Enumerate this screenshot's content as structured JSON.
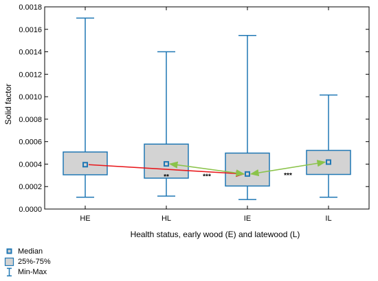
{
  "chart_data": {
    "type": "box",
    "categories": [
      "HE",
      "HL",
      "IE",
      "IL"
    ],
    "boxes": [
      {
        "category": "HE",
        "min": 0.000105,
        "q1": 0.000305,
        "median": 0.000395,
        "q3": 0.000508,
        "max": 0.0017
      },
      {
        "category": "HL",
        "min": 0.000115,
        "q1": 0.000275,
        "median": 0.000402,
        "q3": 0.000578,
        "max": 0.0014
      },
      {
        "category": "IE",
        "min": 8.5e-05,
        "q1": 0.000205,
        "median": 0.000312,
        "q3": 0.000498,
        "max": 0.001545
      },
      {
        "category": "IL",
        "min": 0.000105,
        "q1": 0.000308,
        "median": 0.000418,
        "q3": 0.000522,
        "max": 0.001015
      }
    ],
    "ylabel": "Solid factor",
    "xlabel": "Health status, early wood (E) and latewood (L)",
    "ylim": [
      0,
      0.0018
    ],
    "yticks": [
      "0.0000",
      "0.0002",
      "0.0004",
      "0.0006",
      "0.0008",
      "0.0010",
      "0.0012",
      "0.0014",
      "0.0016",
      "0.0018"
    ],
    "grid": false,
    "legend": {
      "placement": "bottom-left",
      "entries": [
        {
          "symbol": "median-square",
          "label": "Median"
        },
        {
          "symbol": "box",
          "label": "25%-75%"
        },
        {
          "symbol": "whisker",
          "label": "Min-Max"
        }
      ]
    },
    "annotations": [
      {
        "type": "arrow",
        "from": "HE",
        "to": "IE",
        "color": "#e8171b",
        "label": "**"
      },
      {
        "type": "double-arrow",
        "from": "HL",
        "to": "IE",
        "color": "#8bc34a",
        "label": "***"
      },
      {
        "type": "double-arrow",
        "from": "IE",
        "to": "IL",
        "color": "#8bc34a",
        "label": "***"
      }
    ],
    "colors": {
      "box_fill": "#d3d3d3",
      "box_stroke": "#1f77b4",
      "whisker": "#1f77b4",
      "median": "#1f77b4"
    }
  }
}
